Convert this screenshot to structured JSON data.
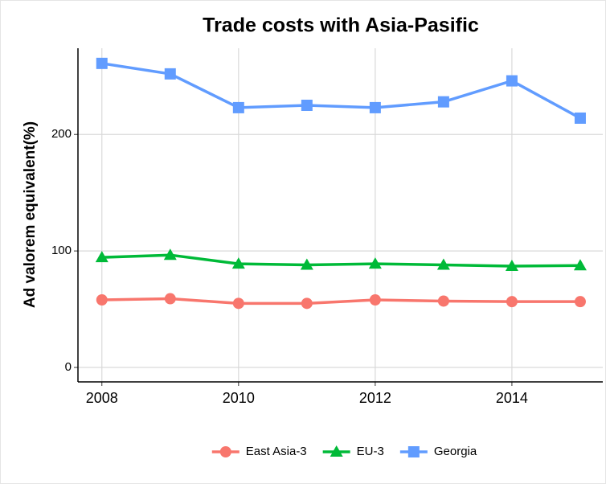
{
  "chart_data": {
    "type": "line",
    "title": "Trade costs with Asia-Pasific",
    "y_label": "Ad valorem equivalent(%)",
    "x": [
      2008,
      2009,
      2010,
      2011,
      2012,
      2013,
      2014,
      2015
    ],
    "series": [
      {
        "name": "East Asia-3",
        "color": "#F8766D",
        "marker": "circle",
        "values": [
          58,
          59,
          55,
          55,
          58,
          57,
          56.5,
          56.5
        ]
      },
      {
        "name": "EU-3",
        "color": "#00BA38",
        "marker": "triangle",
        "values": [
          94.5,
          96.5,
          89,
          88,
          89,
          88,
          87,
          87.5
        ]
      },
      {
        "name": "Georgia",
        "color": "#619CFF",
        "marker": "square",
        "values": [
          261,
          252,
          223,
          225,
          223,
          228,
          246,
          214
        ]
      }
    ],
    "xlim": [
      2007.65,
      2015.33
    ],
    "xticks": [
      2008,
      2010,
      2012,
      2014
    ],
    "ylim": [
      -12.4,
      274
    ],
    "yticks": [
      0,
      100,
      200
    ],
    "grid": true,
    "legend": "bottom"
  }
}
